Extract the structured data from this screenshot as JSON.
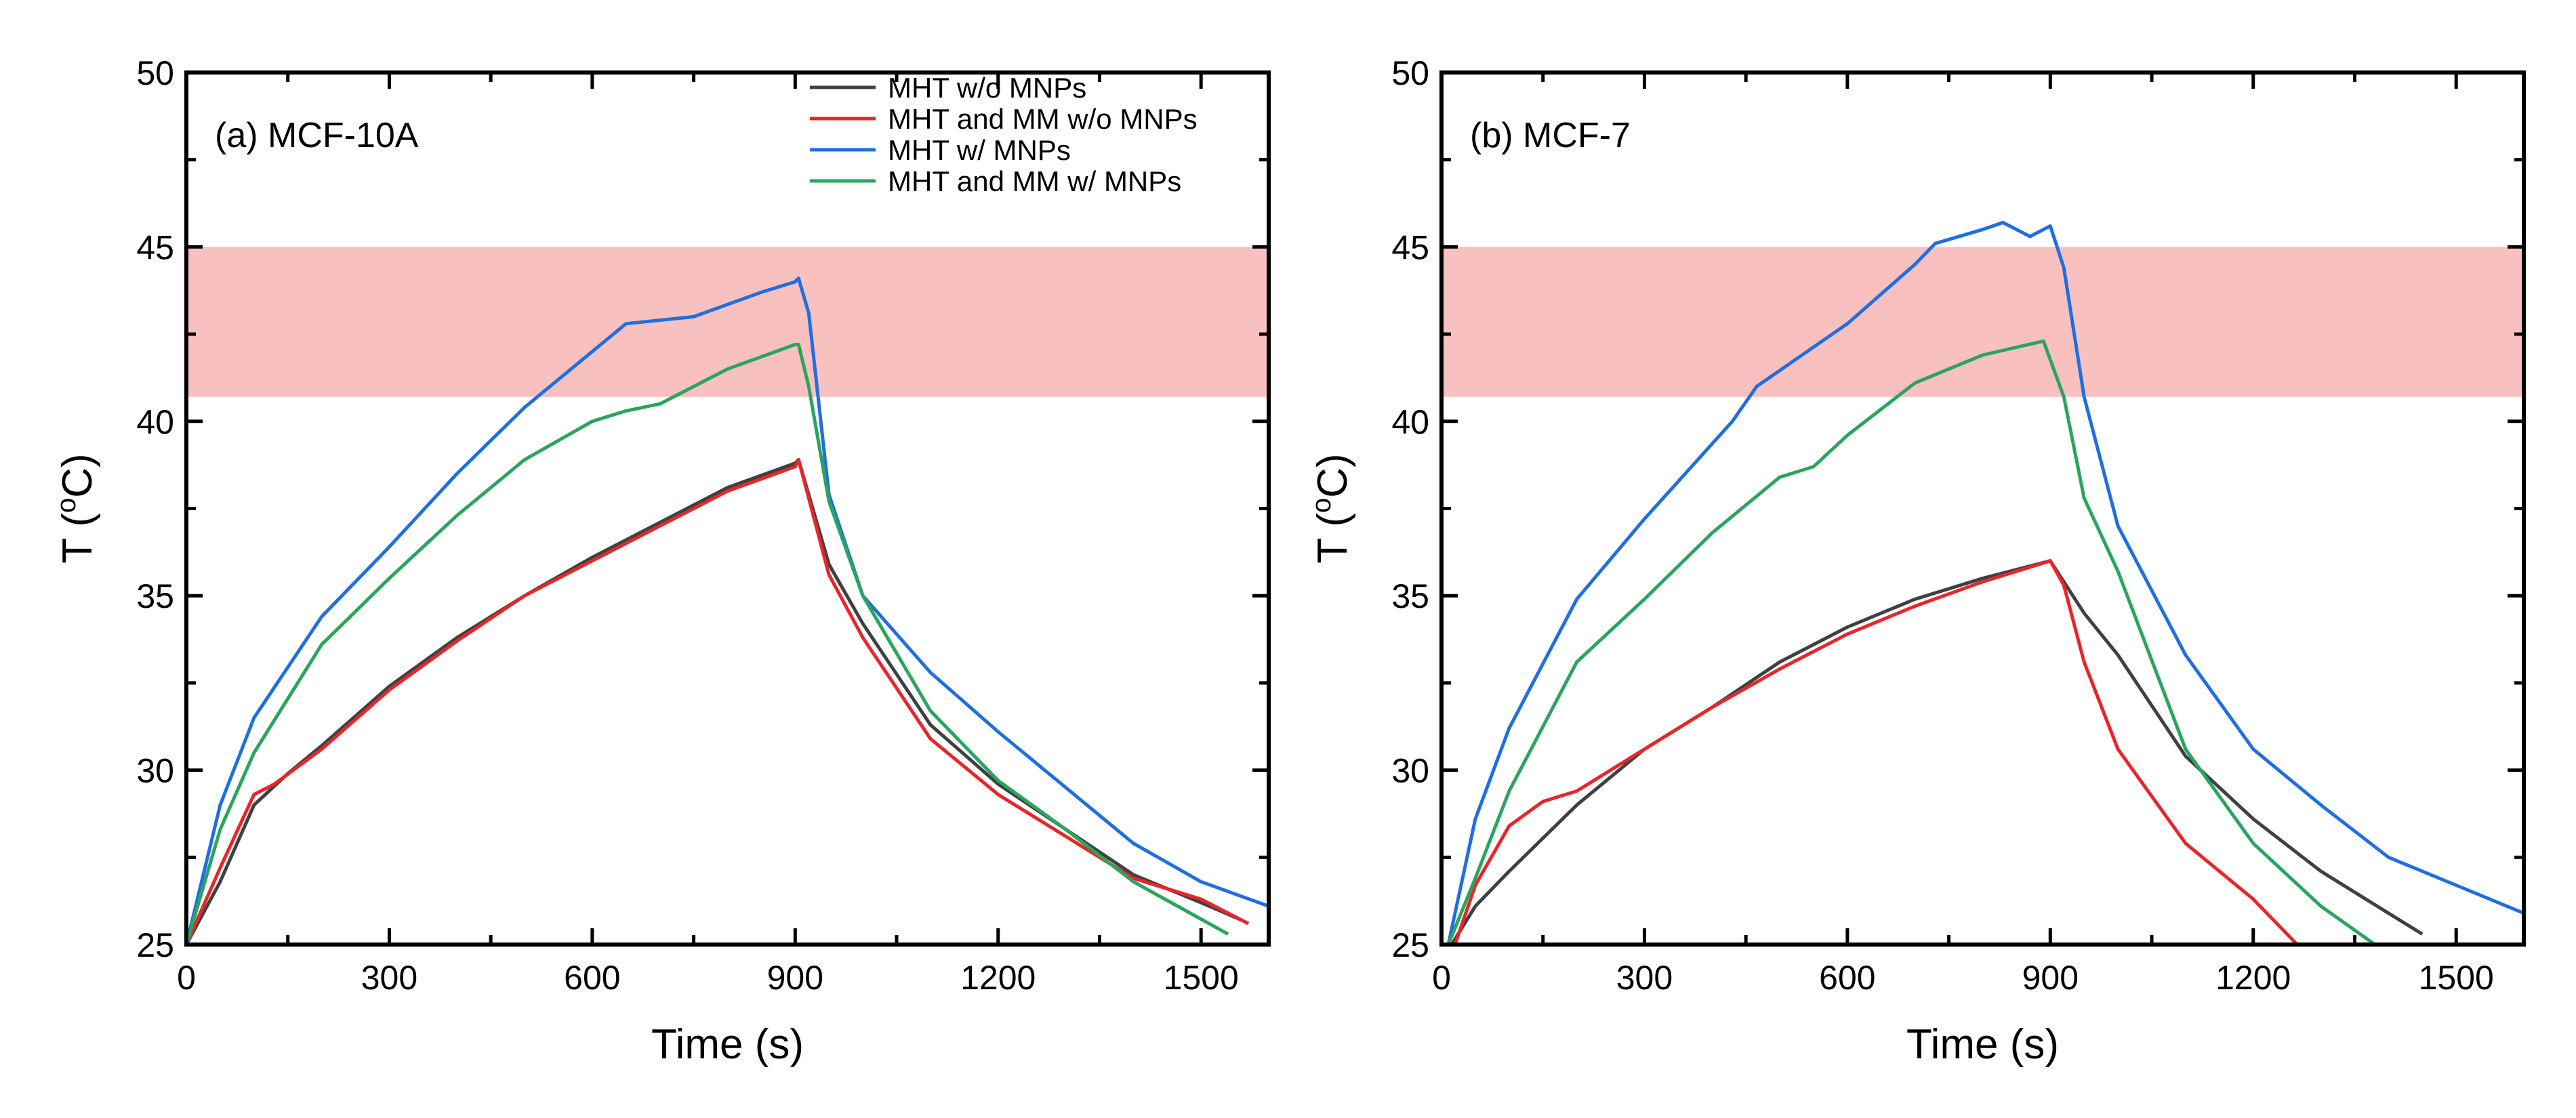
{
  "chart_data": [
    {
      "type": "line",
      "panel_label": "(a) MCF-10A",
      "xlabel": "Time (s)",
      "ylabel": "T (",
      "ylabel_sup": "o",
      "ylabel_end": "C)",
      "xlim": [
        0,
        1600
      ],
      "ylim": [
        25,
        50
      ],
      "xticks": [
        0,
        300,
        600,
        900,
        1200,
        1500
      ],
      "yticks": [
        25,
        30,
        35,
        40,
        45,
        50
      ],
      "band": {
        "ymin": 40.7,
        "ymax": 45,
        "color": "#f9c0c0"
      },
      "legend_position": "top-right",
      "series": [
        {
          "name": "MHT w/o MNPs",
          "color": "#404040",
          "x": [
            0,
            50,
            100,
            150,
            200,
            300,
            400,
            500,
            600,
            700,
            800,
            900,
            905,
            950,
            1000,
            1100,
            1200,
            1300,
            1400,
            1500,
            1560
          ],
          "y": [
            25,
            26.8,
            29.0,
            29.9,
            30.7,
            32.4,
            33.8,
            35.0,
            36.1,
            37.1,
            38.1,
            38.8,
            38.9,
            35.9,
            34.2,
            31.3,
            29.6,
            28.3,
            27.0,
            26.2,
            25.7
          ]
        },
        {
          "name": "MHT and MM w/o MNPs",
          "color": "#e8262a",
          "x": [
            0,
            50,
            100,
            130,
            200,
            300,
            400,
            500,
            600,
            700,
            800,
            900,
            905,
            950,
            1000,
            1100,
            1200,
            1300,
            1400,
            1500,
            1570
          ],
          "y": [
            25,
            27.2,
            29.3,
            29.6,
            30.6,
            32.3,
            33.7,
            35.0,
            36.0,
            37.0,
            38.0,
            38.7,
            38.9,
            35.6,
            33.8,
            30.9,
            29.3,
            28.1,
            26.9,
            26.3,
            25.6
          ]
        },
        {
          "name": "MHT w/ MNPs",
          "color": "#1f6fe0",
          "x": [
            0,
            50,
            100,
            200,
            300,
            400,
            500,
            600,
            650,
            750,
            850,
            900,
            905,
            920,
            950,
            1000,
            1100,
            1200,
            1300,
            1400,
            1500,
            1600
          ],
          "y": [
            25,
            29.0,
            31.5,
            34.4,
            36.4,
            38.5,
            40.4,
            42.0,
            42.8,
            43.0,
            43.7,
            44.0,
            44.1,
            43.1,
            37.9,
            35.0,
            32.8,
            31.1,
            29.5,
            27.9,
            26.8,
            26.1
          ]
        },
        {
          "name": "MHT and MM w/ MNPs",
          "color": "#2aa55e",
          "x": [
            0,
            50,
            100,
            200,
            300,
            400,
            500,
            600,
            650,
            700,
            800,
            900,
            905,
            920,
            950,
            1000,
            1100,
            1200,
            1300,
            1400,
            1540
          ],
          "y": [
            25,
            28.3,
            30.5,
            33.6,
            35.5,
            37.3,
            38.9,
            40.0,
            40.3,
            40.5,
            41.5,
            42.2,
            42.2,
            41.0,
            37.7,
            35.0,
            31.7,
            29.7,
            28.3,
            26.8,
            25.3
          ]
        }
      ]
    },
    {
      "type": "line",
      "panel_label": "(b) MCF-7",
      "xlabel": "Time (s)",
      "ylabel": "T (",
      "ylabel_sup": "o",
      "ylabel_end": "C)",
      "xlim": [
        0,
        1600
      ],
      "ylim": [
        25,
        50
      ],
      "xticks": [
        0,
        300,
        600,
        900,
        1200,
        1500
      ],
      "yticks": [
        25,
        30,
        35,
        40,
        45,
        50
      ],
      "band": {
        "ymin": 40.7,
        "ymax": 45,
        "color": "#f9c0c0"
      },
      "series": [
        {
          "name": "MHT w/o MNPs",
          "color": "#404040",
          "x": [
            15,
            50,
            100,
            200,
            300,
            400,
            500,
            600,
            700,
            800,
            900,
            950,
            1000,
            1100,
            1200,
            1300,
            1400,
            1450
          ],
          "y": [
            25,
            26.1,
            27.1,
            29.0,
            30.6,
            31.8,
            33.1,
            34.1,
            34.9,
            35.5,
            36.0,
            34.5,
            33.3,
            30.4,
            28.6,
            27.1,
            25.9,
            25.3
          ]
        },
        {
          "name": "MHT and MM w/o MNPs",
          "color": "#e8262a",
          "x": [
            20,
            50,
            100,
            150,
            200,
            300,
            400,
            500,
            600,
            700,
            800,
            900,
            920,
            950,
            1000,
            1100,
            1200,
            1265
          ],
          "y": [
            25,
            26.7,
            28.4,
            29.1,
            29.4,
            30.6,
            31.8,
            32.9,
            33.9,
            34.7,
            35.4,
            36.0,
            35.3,
            33.1,
            30.6,
            27.9,
            26.3,
            25
          ]
        },
        {
          "name": "MHT w/ MNPs",
          "color": "#1f6fe0",
          "x": [
            10,
            50,
            100,
            200,
            300,
            430,
            466,
            600,
            700,
            730,
            800,
            830,
            870,
            900,
            920,
            950,
            1000,
            1100,
            1200,
            1300,
            1400,
            1500,
            1600
          ],
          "y": [
            25,
            28.6,
            31.2,
            34.9,
            37.2,
            40.0,
            41.0,
            42.8,
            44.5,
            45.1,
            45.5,
            45.7,
            45.3,
            45.6,
            44.4,
            40.7,
            37.0,
            33.3,
            30.6,
            29.0,
            27.5,
            26.7,
            25.9
          ]
        },
        {
          "name": "MHT and MM w/ MNPs",
          "color": "#2aa55e",
          "x": [
            10,
            50,
            100,
            200,
            300,
            400,
            500,
            550,
            600,
            700,
            800,
            890,
            920,
            950,
            1000,
            1100,
            1200,
            1300,
            1380
          ],
          "y": [
            25,
            26.9,
            29.4,
            33.1,
            34.9,
            36.8,
            38.4,
            38.7,
            39.6,
            41.1,
            41.9,
            42.3,
            40.7,
            37.8,
            35.7,
            30.6,
            27.9,
            26.1,
            25
          ]
        }
      ]
    }
  ]
}
